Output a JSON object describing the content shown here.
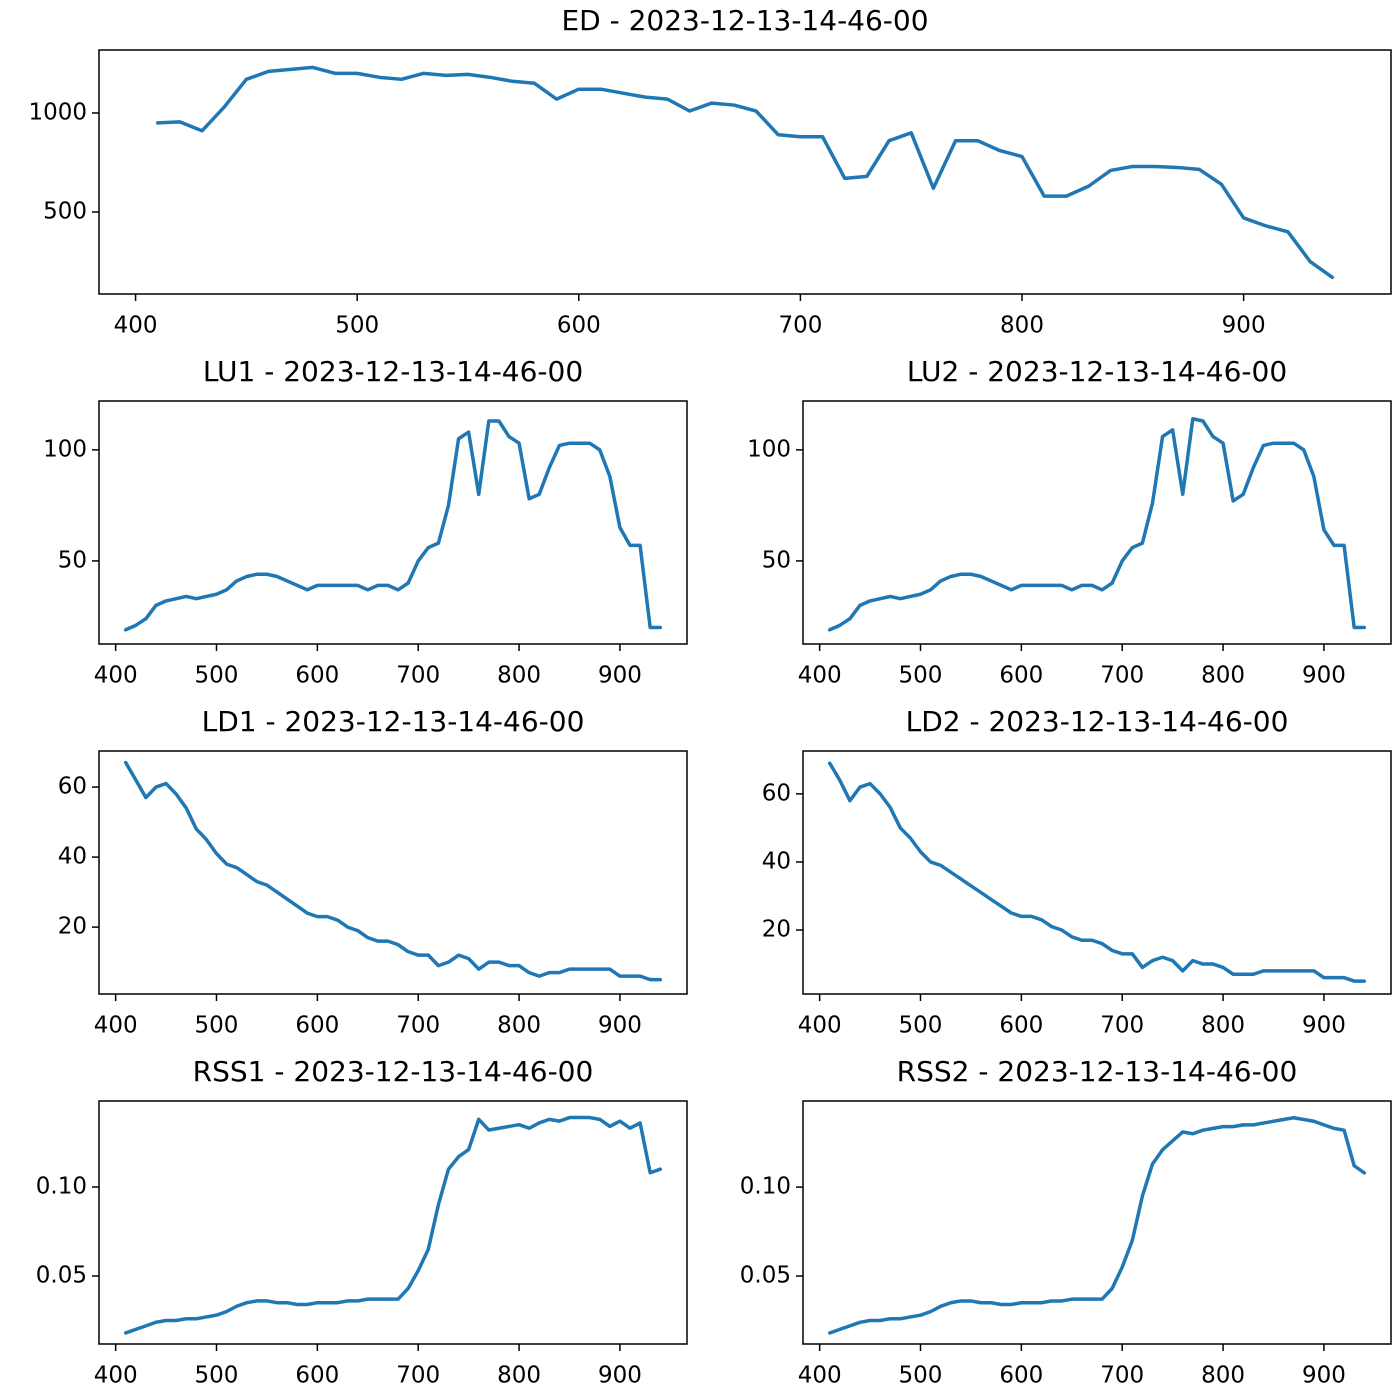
{
  "chart_data": [
    {
      "type": "line",
      "title": "ED - 2023-12-13-14-46-00",
      "color": "#1f77b4",
      "x": [
        410,
        420,
        430,
        440,
        450,
        460,
        470,
        480,
        490,
        500,
        510,
        520,
        530,
        540,
        550,
        560,
        570,
        580,
        590,
        600,
        610,
        620,
        630,
        640,
        650,
        660,
        670,
        680,
        690,
        700,
        710,
        720,
        730,
        740,
        750,
        760,
        770,
        780,
        790,
        800,
        810,
        820,
        830,
        840,
        850,
        860,
        870,
        880,
        890,
        900,
        910,
        920,
        930,
        940
      ],
      "values": [
        950,
        955,
        910,
        1030,
        1170,
        1210,
        1220,
        1230,
        1200,
        1200,
        1180,
        1170,
        1200,
        1190,
        1195,
        1180,
        1160,
        1150,
        1070,
        1120,
        1120,
        1100,
        1080,
        1070,
        1010,
        1050,
        1040,
        1010,
        890,
        880,
        880,
        670,
        680,
        860,
        900,
        620,
        860,
        860,
        810,
        780,
        580,
        580,
        630,
        710,
        730,
        730,
        725,
        715,
        640,
        470,
        430,
        400,
        250,
        170
      ],
      "xlim": [
        383.5,
        966.5
      ],
      "xticks": [
        400,
        500,
        600,
        700,
        800,
        900
      ],
      "ylim": [
        86,
        1318
      ],
      "yticks": [
        500,
        1000
      ]
    },
    {
      "type": "line",
      "title": "LU1 - 2023-12-13-14-46-00",
      "color": "#1f77b4",
      "x": [
        410,
        420,
        430,
        440,
        450,
        460,
        470,
        480,
        490,
        500,
        510,
        520,
        530,
        540,
        550,
        560,
        570,
        580,
        590,
        600,
        610,
        620,
        630,
        640,
        650,
        660,
        670,
        680,
        690,
        700,
        710,
        720,
        730,
        740,
        750,
        760,
        770,
        780,
        790,
        800,
        810,
        820,
        830,
        840,
        850,
        860,
        870,
        880,
        890,
        900,
        910,
        920,
        930,
        940
      ],
      "values": [
        19,
        21,
        24,
        30,
        32,
        33,
        34,
        33,
        34,
        35,
        37,
        41,
        43,
        44,
        44,
        43,
        41,
        39,
        37,
        39,
        39,
        39,
        39,
        39,
        37,
        39,
        39,
        37,
        40,
        50,
        56,
        58,
        75,
        105,
        108,
        80,
        113,
        113,
        106,
        103,
        78,
        80,
        92,
        102,
        103,
        103,
        103,
        100,
        88,
        65,
        57,
        57,
        20,
        20
      ],
      "xlim": [
        383.5,
        966.5
      ],
      "xticks": [
        400,
        500,
        600,
        700,
        800,
        900
      ],
      "ylim": [
        12.6,
        122
      ],
      "yticks": [
        50,
        100
      ]
    },
    {
      "type": "line",
      "title": "LU2 - 2023-12-13-14-46-00",
      "color": "#1f77b4",
      "x": [
        410,
        420,
        430,
        440,
        450,
        460,
        470,
        480,
        490,
        500,
        510,
        520,
        530,
        540,
        550,
        560,
        570,
        580,
        590,
        600,
        610,
        620,
        630,
        640,
        650,
        660,
        670,
        680,
        690,
        700,
        710,
        720,
        730,
        740,
        750,
        760,
        770,
        780,
        790,
        800,
        810,
        820,
        830,
        840,
        850,
        860,
        870,
        880,
        890,
        900,
        910,
        920,
        930,
        940
      ],
      "values": [
        19,
        21,
        24,
        30,
        32,
        33,
        34,
        33,
        34,
        35,
        37,
        41,
        43,
        44,
        44,
        43,
        41,
        39,
        37,
        39,
        39,
        39,
        39,
        39,
        37,
        39,
        39,
        37,
        40,
        50,
        56,
        58,
        76,
        106,
        109,
        80,
        114,
        113,
        106,
        103,
        77,
        80,
        92,
        102,
        103,
        103,
        103,
        100,
        88,
        64,
        57,
        57,
        20,
        20
      ],
      "xlim": [
        383.5,
        966.5
      ],
      "xticks": [
        400,
        500,
        600,
        700,
        800,
        900
      ],
      "ylim": [
        12.6,
        122
      ],
      "yticks": [
        50,
        100
      ]
    },
    {
      "type": "line",
      "title": "LD1 - 2023-12-13-14-46-00",
      "color": "#1f77b4",
      "x": [
        410,
        420,
        430,
        440,
        450,
        460,
        470,
        480,
        490,
        500,
        510,
        520,
        530,
        540,
        550,
        560,
        570,
        580,
        590,
        600,
        610,
        620,
        630,
        640,
        650,
        660,
        670,
        680,
        690,
        700,
        710,
        720,
        730,
        740,
        750,
        760,
        770,
        780,
        790,
        800,
        810,
        820,
        830,
        840,
        850,
        860,
        870,
        880,
        890,
        900,
        910,
        920,
        930,
        940
      ],
      "values": [
        67,
        62,
        57,
        60,
        61,
        58,
        54,
        48,
        45,
        41,
        38,
        37,
        35,
        33,
        32,
        30,
        28,
        26,
        24,
        23,
        23,
        22,
        20,
        19,
        17,
        16,
        16,
        15,
        13,
        12,
        12,
        9,
        10,
        12,
        11,
        8,
        10,
        10,
        9,
        9,
        7,
        6,
        7,
        7,
        8,
        8,
        8,
        8,
        8,
        6,
        6,
        6,
        5,
        5
      ],
      "xlim": [
        383.5,
        966.5
      ],
      "xticks": [
        400,
        500,
        600,
        700,
        800,
        900
      ],
      "ylim": [
        0.9,
        70.3
      ],
      "yticks": [
        20,
        40,
        60
      ]
    },
    {
      "type": "line",
      "title": "LD2 - 2023-12-13-14-46-00",
      "color": "#1f77b4",
      "x": [
        410,
        420,
        430,
        440,
        450,
        460,
        470,
        480,
        490,
        500,
        510,
        520,
        530,
        540,
        550,
        560,
        570,
        580,
        590,
        600,
        610,
        620,
        630,
        640,
        650,
        660,
        670,
        680,
        690,
        700,
        710,
        720,
        730,
        740,
        750,
        760,
        770,
        780,
        790,
        800,
        810,
        820,
        830,
        840,
        850,
        860,
        870,
        880,
        890,
        900,
        910,
        920,
        930,
        940
      ],
      "values": [
        69,
        64,
        58,
        62,
        63,
        60,
        56,
        50,
        47,
        43,
        40,
        39,
        37,
        35,
        33,
        31,
        29,
        27,
        25,
        24,
        24,
        23,
        21,
        20,
        18,
        17,
        17,
        16,
        14,
        13,
        13,
        9,
        11,
        12,
        11,
        8,
        11,
        10,
        10,
        9,
        7,
        7,
        7,
        8,
        8,
        8,
        8,
        8,
        8,
        6,
        6,
        6,
        5,
        5
      ],
      "xlim": [
        383.5,
        966.5
      ],
      "xticks": [
        400,
        500,
        600,
        700,
        800,
        900
      ],
      "ylim": [
        1.2,
        72.6
      ],
      "yticks": [
        20,
        40,
        60
      ]
    },
    {
      "type": "line",
      "title": "RSS1 - 2023-12-13-14-46-00",
      "color": "#1f77b4",
      "x": [
        410,
        420,
        430,
        440,
        450,
        460,
        470,
        480,
        490,
        500,
        510,
        520,
        530,
        540,
        550,
        560,
        570,
        580,
        590,
        600,
        610,
        620,
        630,
        640,
        650,
        660,
        670,
        680,
        690,
        700,
        710,
        720,
        730,
        740,
        750,
        760,
        770,
        780,
        790,
        800,
        810,
        820,
        830,
        840,
        850,
        860,
        870,
        880,
        890,
        900,
        910,
        920,
        930,
        940
      ],
      "values": [
        0.018,
        0.02,
        0.022,
        0.024,
        0.025,
        0.025,
        0.026,
        0.026,
        0.027,
        0.028,
        0.03,
        0.033,
        0.035,
        0.036,
        0.036,
        0.035,
        0.035,
        0.034,
        0.034,
        0.035,
        0.035,
        0.035,
        0.036,
        0.036,
        0.037,
        0.037,
        0.037,
        0.037,
        0.043,
        0.053,
        0.065,
        0.09,
        0.11,
        0.117,
        0.121,
        0.138,
        0.132,
        0.133,
        0.134,
        0.135,
        0.133,
        0.136,
        0.138,
        0.137,
        0.139,
        0.139,
        0.139,
        0.138,
        0.134,
        0.137,
        0.133,
        0.136,
        0.108,
        0.11
      ],
      "xlim": [
        383.5,
        966.5
      ],
      "xticks": [
        400,
        500,
        600,
        700,
        800,
        900
      ],
      "ylim": [
        0.0118,
        0.1483
      ],
      "yticks": [
        0.05,
        {
          "value": 0.1,
          "label": "0.10"
        }
      ]
    },
    {
      "type": "line",
      "title": "RSS2 - 2023-12-13-14-46-00",
      "color": "#1f77b4",
      "x": [
        410,
        420,
        430,
        440,
        450,
        460,
        470,
        480,
        490,
        500,
        510,
        520,
        530,
        540,
        550,
        560,
        570,
        580,
        590,
        600,
        610,
        620,
        630,
        640,
        650,
        660,
        670,
        680,
        690,
        700,
        710,
        720,
        730,
        740,
        750,
        760,
        770,
        780,
        790,
        800,
        810,
        820,
        830,
        840,
        850,
        860,
        870,
        880,
        890,
        900,
        910,
        920,
        930,
        940
      ],
      "values": [
        0.018,
        0.02,
        0.022,
        0.024,
        0.025,
        0.025,
        0.026,
        0.026,
        0.027,
        0.028,
        0.03,
        0.033,
        0.035,
        0.036,
        0.036,
        0.035,
        0.035,
        0.034,
        0.034,
        0.035,
        0.035,
        0.035,
        0.036,
        0.036,
        0.037,
        0.037,
        0.037,
        0.037,
        0.043,
        0.055,
        0.07,
        0.095,
        0.113,
        0.121,
        0.126,
        0.131,
        0.13,
        0.132,
        0.133,
        0.134,
        0.134,
        0.135,
        0.135,
        0.136,
        0.137,
        0.138,
        0.139,
        0.138,
        0.137,
        0.135,
        0.133,
        0.132,
        0.112,
        0.108
      ],
      "xlim": [
        383.5,
        966.5
      ],
      "xticks": [
        400,
        500,
        600,
        700,
        800,
        900
      ],
      "ylim": [
        0.0118,
        0.1484
      ],
      "yticks": [
        0.05,
        {
          "value": 0.1,
          "label": "0.10"
        }
      ]
    }
  ]
}
